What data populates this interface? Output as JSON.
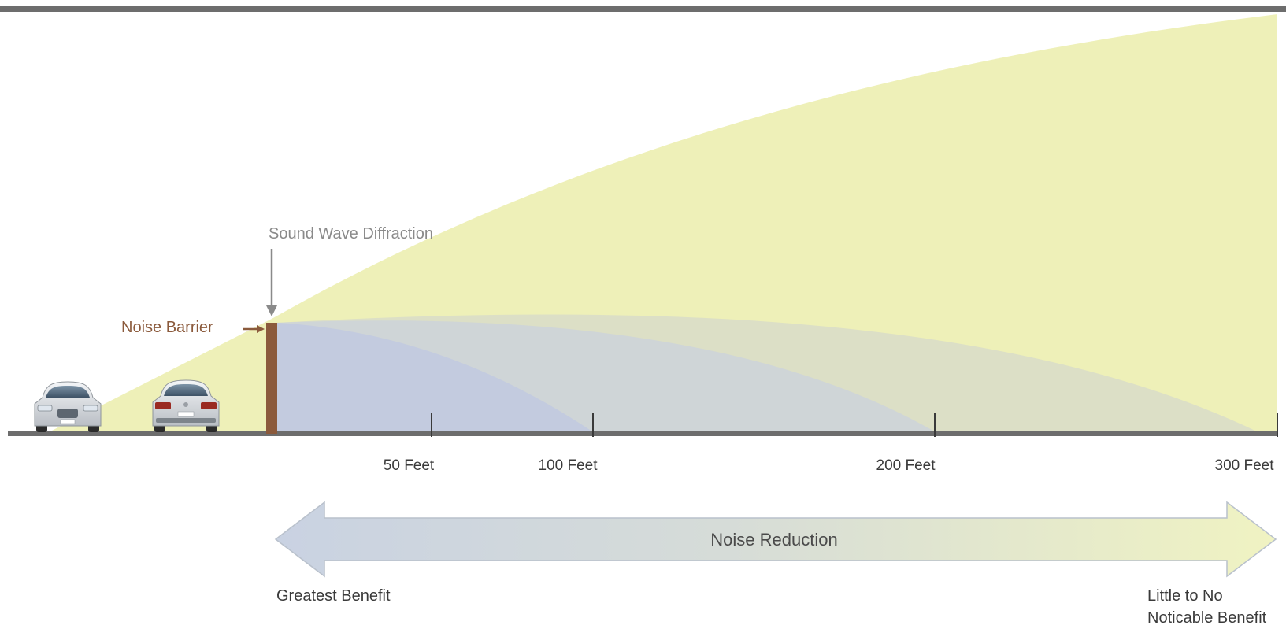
{
  "labels": {
    "diffraction": "Sound Wave Diffraction",
    "barrier": "Noise Barrier",
    "reduction": "Noise Reduction",
    "greatest": "Greatest Benefit",
    "little_line1": "Little to No",
    "little_line2": "Noticable Benefit"
  },
  "distance_ticks": [
    "50 Feet",
    "100 Feet",
    "200 Feet",
    "300 Feet"
  ],
  "colors": {
    "diffraction_label": "#8a8a8a",
    "barrier": "#8b5a3c",
    "barrier_label": "#8b5a3c",
    "ground": "#6d6d6d",
    "sound_yellow": "#eef0b8",
    "shadow_blue": "#c7cfe0",
    "arrow_blue": "#c9d2e2",
    "arrow_yellow": "#eef2c0"
  },
  "icons": [
    "car-front-icon",
    "car-rear-icon"
  ]
}
